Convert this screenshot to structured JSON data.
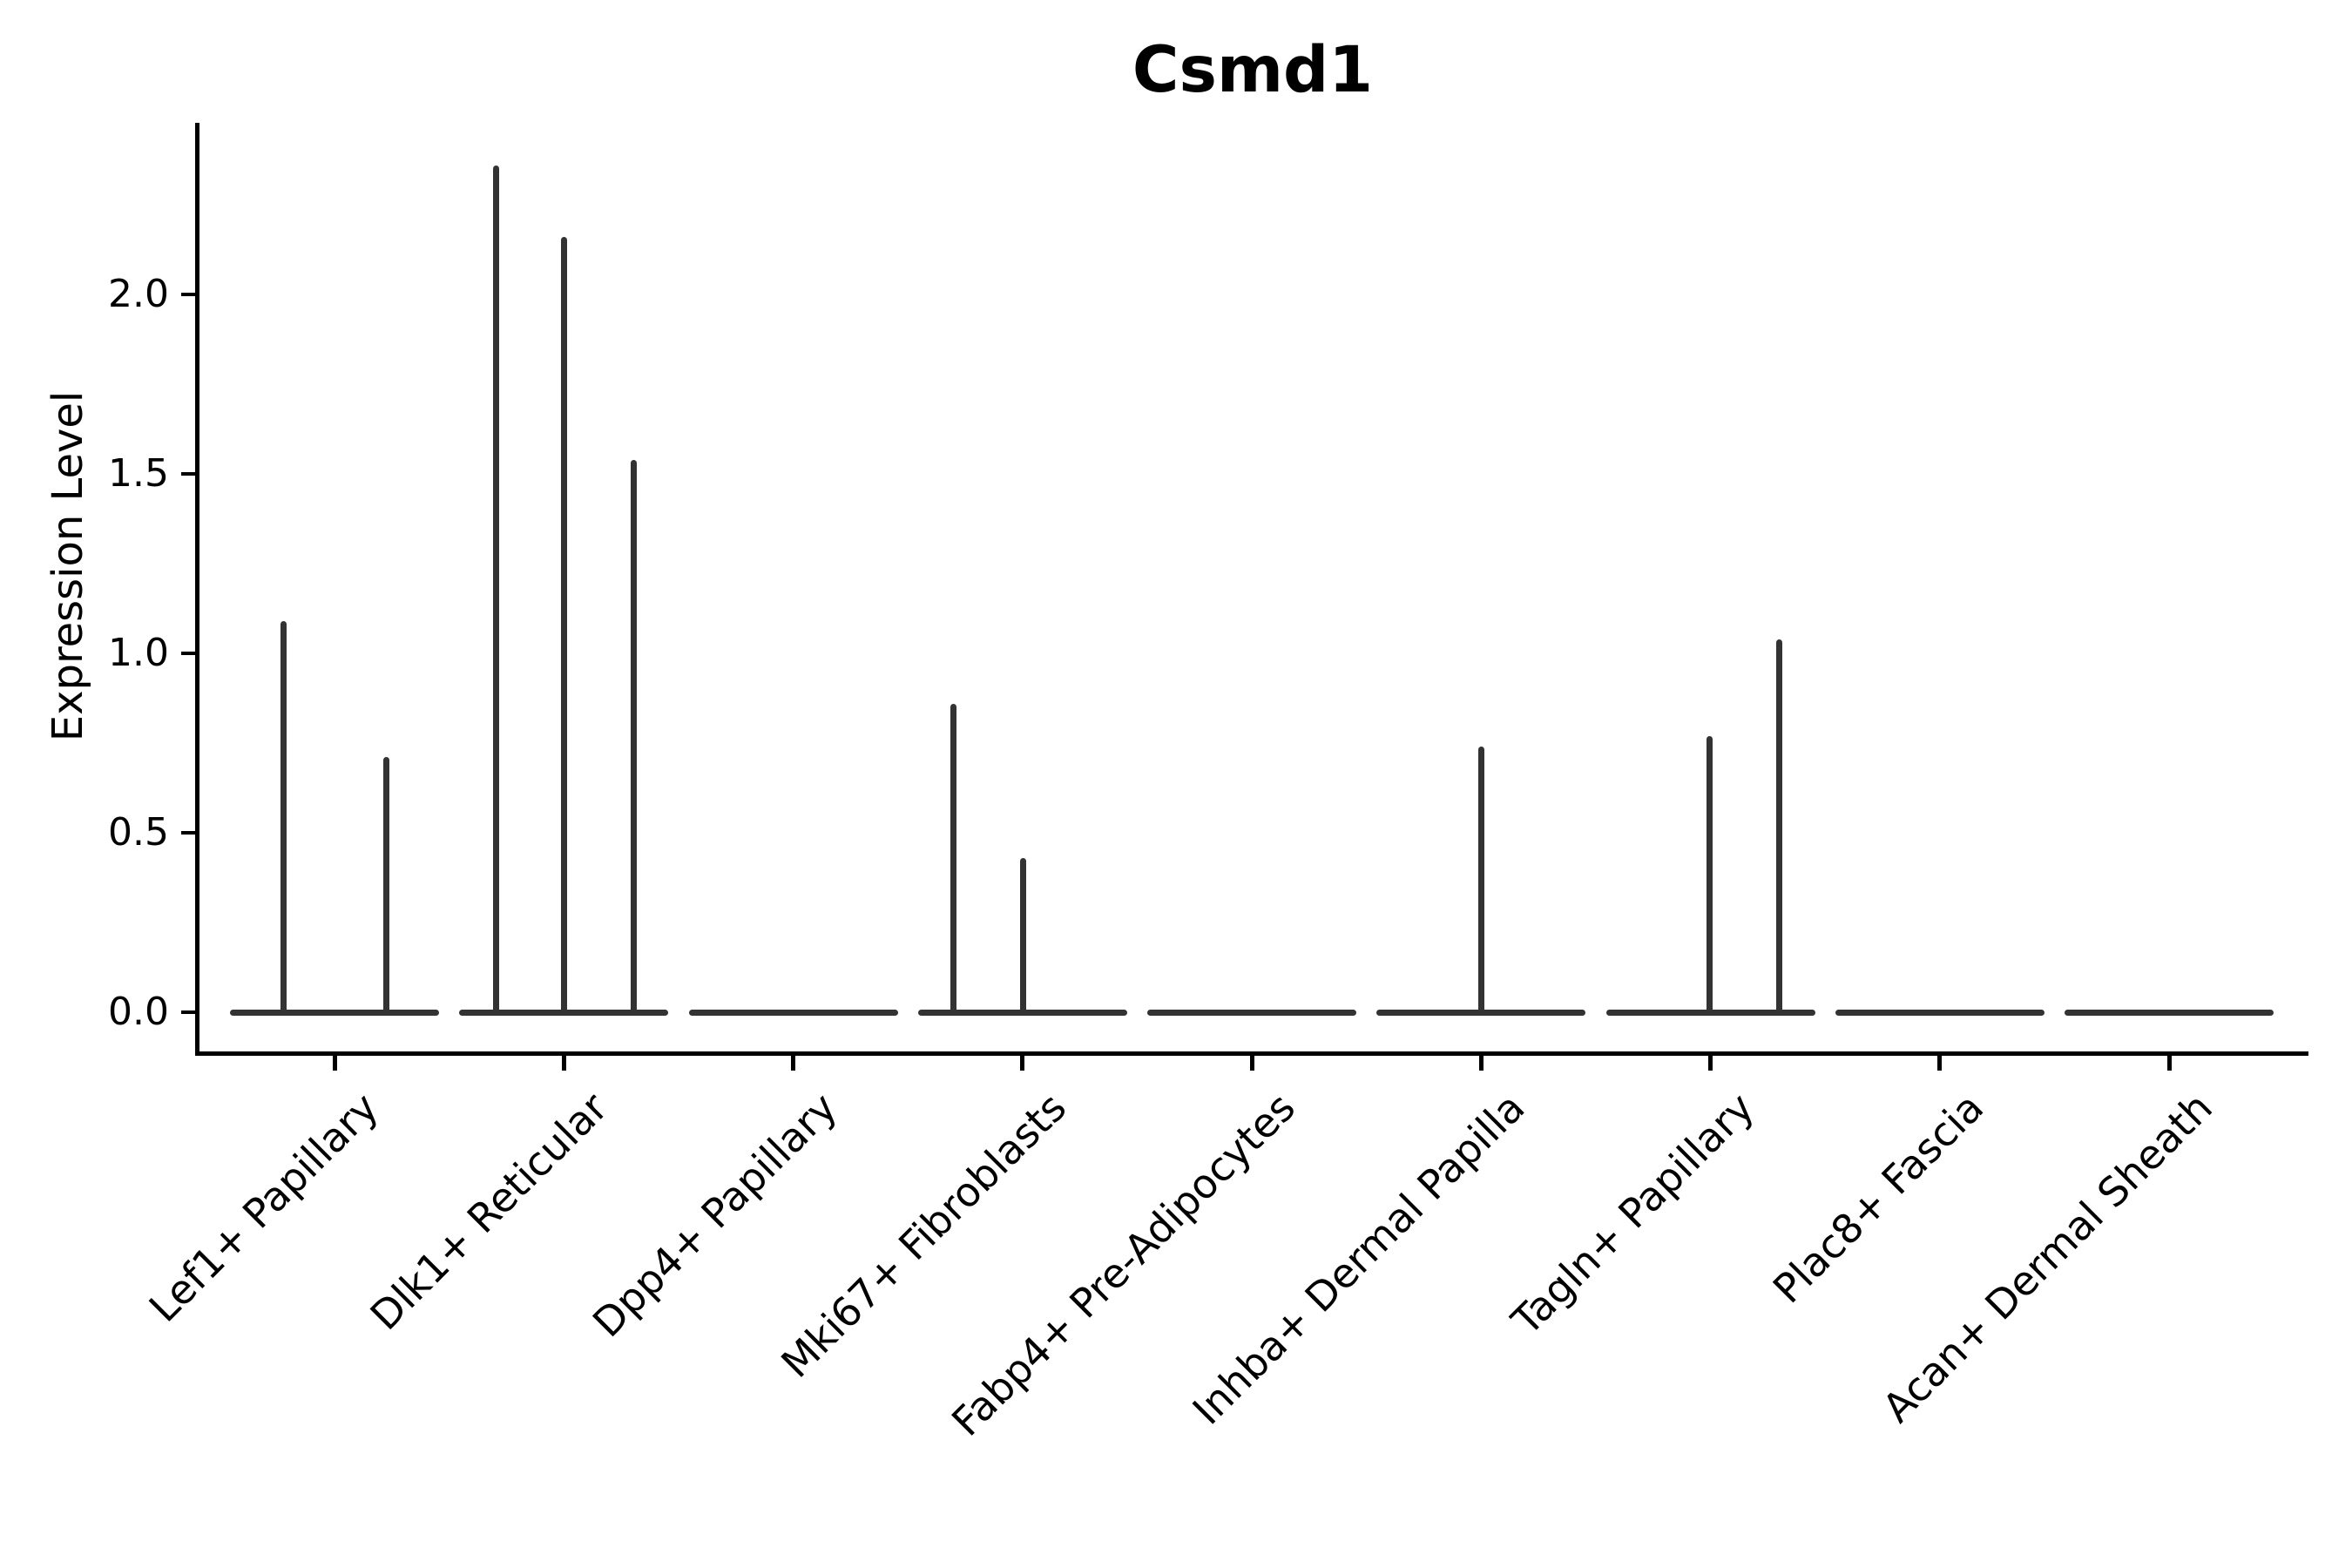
{
  "title": "Csmd1",
  "ylabel": "Expression Level",
  "colors": {
    "background": "#ffffff",
    "axis": "#000000",
    "violin_line": "#333333",
    "text": "#000000"
  },
  "chart_data": {
    "type": "violin",
    "title": "Csmd1",
    "xlabel": "",
    "ylabel": "Expression Level",
    "grid": false,
    "legend": "none",
    "ylim": [
      -0.114,
      2.478
    ],
    "yticks": [
      0.0,
      0.5,
      1.0,
      1.5,
      2.0
    ],
    "ytick_labels": [
      "0.0",
      "0.5",
      "1.0",
      "1.5",
      "2.0"
    ],
    "categories": [
      "Lef1+ Papillary",
      "Dlk1+ Reticular",
      "Dpp4+ Papillary",
      "Mki67+ Fibroblasts",
      "Fabp4+ Pre-Adipocytes",
      "Inhba+ Dermal Papilla",
      "Tagln+ Papillary",
      "Plac8+ Fascia",
      "Acan+ Dermal Sheath"
    ],
    "description": "Each category shows an extremely thin violin: a flat horizontal density body at expression 0 with narrow vertical density spikes reaching the maximum expression of rare positive cells.",
    "violins": [
      {
        "category": "Lef1+ Papillary",
        "baseline_value": 0,
        "spikes": [
          {
            "dx": -59,
            "value": 1.09
          },
          {
            "dx": 59,
            "value": 0.71
          }
        ]
      },
      {
        "category": "Dlk1+ Reticular",
        "baseline_value": 0,
        "spikes": [
          {
            "dx": -78,
            "value": 2.36
          },
          {
            "dx": 0,
            "value": 2.16
          },
          {
            "dx": 80,
            "value": 1.54
          }
        ]
      },
      {
        "category": "Dpp4+ Papillary",
        "baseline_value": 0,
        "spikes": []
      },
      {
        "category": "Mki67+ Fibroblasts",
        "baseline_value": 0,
        "spikes": [
          {
            "dx": -79,
            "value": 0.86
          },
          {
            "dx": 1,
            "value": 0.43
          }
        ]
      },
      {
        "category": "Fabp4+ Pre-Adipocytes",
        "baseline_value": 0,
        "spikes": []
      },
      {
        "category": "Inhba+ Dermal Papilla",
        "baseline_value": 0,
        "spikes": [
          {
            "dx": 0,
            "value": 0.74
          }
        ]
      },
      {
        "category": "Tagln+ Papillary",
        "baseline_value": 0,
        "spikes": [
          {
            "dx": -1,
            "value": 0.77
          },
          {
            "dx": 79,
            "value": 1.04
          }
        ]
      },
      {
        "category": "Plac8+ Fascia",
        "baseline_value": 0,
        "spikes": []
      },
      {
        "category": "Acan+ Dermal Sheath",
        "baseline_value": 0,
        "spikes": []
      }
    ]
  }
}
